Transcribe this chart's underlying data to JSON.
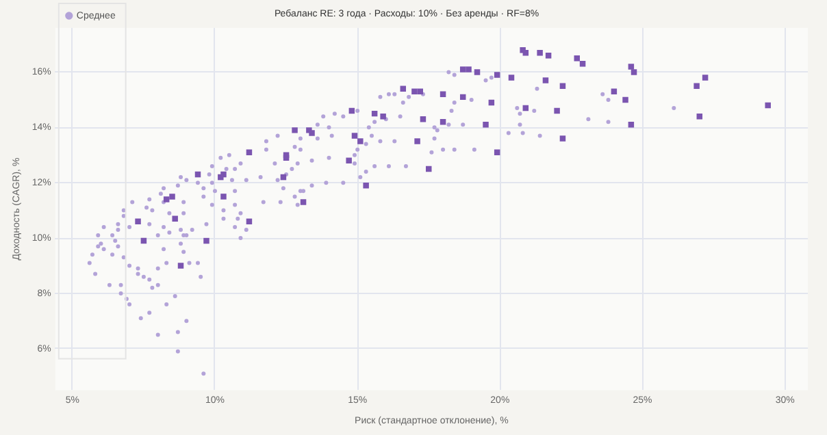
{
  "chart_data": {
    "type": "scatter",
    "title": "Ребаланс RE: 3 года · Расходы: 10% · Без аренды · RF=8%",
    "xlabel": "Риск (стандартное отклонение), %",
    "ylabel": "Доходность (CAGR), %",
    "xlim": [
      4.4,
      30.8
    ],
    "ylim": [
      4.5,
      17.6
    ],
    "xticks": [
      {
        "value": 5,
        "label": "5%"
      },
      {
        "value": 10,
        "label": "10%"
      },
      {
        "value": 15,
        "label": "15%"
      },
      {
        "value": 20,
        "label": "20%"
      },
      {
        "value": 25,
        "label": "25%"
      },
      {
        "value": 30,
        "label": "30%"
      }
    ],
    "yticks": [
      {
        "value": 6,
        "label": "6%"
      },
      {
        "value": 8,
        "label": "8%"
      },
      {
        "value": 10,
        "label": "10%"
      },
      {
        "value": 12,
        "label": "12%"
      },
      {
        "value": 14,
        "label": "14%"
      },
      {
        "value": 16,
        "label": "16%"
      }
    ],
    "grid": true,
    "legend": "top left",
    "series": [
      {
        "name": "Среднее",
        "color": "#b3a3d8",
        "marker": "circle",
        "x": [
          13.6,
          13.6,
          13.0,
          12.2,
          11.8,
          11.8,
          12.8,
          13.0,
          12.1,
          12.7,
          10.5,
          10.9,
          10.2,
          9.9,
          10.4,
          10.7,
          10.6,
          11.1,
          8.8,
          9.0,
          9.8,
          9.4,
          9.6,
          9.9,
          8.2,
          8.7,
          8.1,
          10.0,
          10.7,
          11.6,
          12.2,
          12.4,
          12.8,
          13.4,
          13.0,
          7.1,
          7.7,
          7.6,
          8.2,
          8.9,
          9.6,
          10.7,
          10.9,
          11.7,
          12.3,
          6.8,
          7.8,
          8.4,
          8.9,
          9.9,
          10.3,
          7.0,
          6.6,
          6.8,
          7.7,
          8.2,
          8.8,
          9.2,
          9.7,
          10.8,
          11.1,
          6.1,
          5.9,
          6.4,
          8.0,
          9.0,
          10.9,
          6.6,
          6.0,
          5.9,
          6.5,
          6.4,
          6.1,
          6.6,
          5.7,
          5.6,
          5.8,
          6.8,
          7.0,
          7.3,
          7.3,
          7.5,
          7.7,
          8.0,
          8.4,
          8.2,
          8.8,
          8.9,
          8.9,
          8.3,
          9.1,
          9.4,
          9.5,
          6.3,
          6.7,
          6.7,
          6.9,
          7.0,
          7.8,
          8.0,
          7.4,
          7.7,
          8.3,
          8.6,
          9.0,
          8.0,
          8.7,
          8.7,
          9.6,
          10.3,
          10.7,
          12.9,
          13.1,
          13.9,
          14.5,
          15.1,
          15.3,
          15.6,
          16.1,
          16.7,
          12.9,
          13.4,
          14.0,
          14.0,
          14.1,
          13.8,
          14.2,
          14.5,
          15.0,
          15.4,
          15.6,
          16.0,
          16.5,
          15.8,
          16.1,
          16.3,
          16.6,
          16.8,
          17.3,
          18.2,
          18.4,
          19.0,
          18.4,
          18.3,
          17.7,
          17.8,
          18.2,
          18.7,
          17.7,
          17.6,
          18.0,
          18.4,
          19.1,
          20.3,
          20.8,
          21.4,
          20.7,
          20.7,
          20.6,
          21.2,
          21.3,
          19.5,
          19.7,
          15.8,
          16.3,
          15.3,
          15.0,
          14.9,
          14.9,
          15.5,
          12.5,
          23.6,
          23.8,
          23.1,
          23.8,
          26.1
        ],
        "values": [
          14.1,
          13.6,
          13.6,
          13.7,
          13.5,
          13.2,
          13.3,
          13.2,
          12.7,
          12.5,
          13.0,
          12.7,
          12.9,
          12.6,
          12.5,
          12.5,
          12.1,
          12.1,
          12.2,
          12.1,
          12.3,
          12.0,
          11.8,
          12.0,
          11.8,
          11.9,
          11.6,
          11.7,
          11.7,
          12.2,
          12.1,
          11.8,
          11.5,
          11.9,
          11.7,
          11.3,
          11.4,
          11.1,
          11.3,
          11.3,
          11.5,
          11.2,
          10.9,
          11.3,
          11.3,
          11.0,
          11.0,
          10.9,
          10.9,
          11.2,
          11.0,
          10.4,
          10.5,
          10.8,
          10.5,
          10.4,
          10.3,
          10.3,
          10.5,
          10.7,
          10.3,
          10.4,
          10.1,
          10.1,
          10.1,
          10.1,
          10.0,
          10.3,
          9.8,
          9.7,
          9.9,
          9.4,
          9.6,
          9.7,
          9.4,
          9.1,
          8.7,
          9.3,
          9.0,
          8.9,
          8.7,
          8.6,
          8.5,
          8.9,
          10.2,
          9.6,
          9.8,
          10.1,
          9.5,
          9.1,
          9.1,
          9.1,
          8.6,
          8.3,
          8.3,
          8.0,
          7.8,
          7.6,
          8.2,
          8.3,
          7.1,
          7.3,
          7.6,
          7.9,
          7.0,
          6.5,
          6.6,
          5.9,
          5.1,
          10.7,
          10.4,
          11.2,
          11.7,
          12.0,
          12.0,
          12.2,
          12.4,
          12.6,
          12.6,
          12.6,
          12.7,
          12.8,
          12.9,
          14.0,
          13.7,
          14.4,
          14.5,
          14.4,
          14.6,
          14.0,
          14.2,
          14.3,
          14.4,
          15.1,
          15.2,
          15.2,
          14.9,
          15.1,
          15.2,
          16.0,
          15.9,
          15.0,
          14.9,
          14.6,
          14.0,
          13.9,
          14.1,
          14.1,
          13.6,
          13.1,
          13.2,
          13.2,
          13.2,
          13.8,
          13.8,
          13.7,
          14.1,
          14.5,
          14.7,
          14.6,
          15.4,
          15.7,
          15.8,
          13.5,
          13.5,
          13.4,
          13.2,
          13.0,
          12.7,
          13.7,
          12.3,
          15.2,
          15.0,
          14.3,
          14.2,
          14.7
        ]
      },
      {
        "color": "#7b55b0",
        "marker": "square",
        "x": [
          7.3,
          7.5,
          8.6,
          8.8,
          9.7,
          11.2,
          8.3,
          8.5,
          10.3,
          13.1,
          9.4,
          10.3,
          10.2,
          12.4,
          11.2,
          12.5,
          12.5,
          12.8,
          13.3,
          13.4,
          14.8,
          15.6,
          15.9,
          17.3,
          18.0,
          19.5,
          14.9,
          15.1,
          17.1,
          19.9,
          14.7,
          17.5,
          15.3,
          16.6,
          17.0,
          17.2,
          18.0,
          18.7,
          19.7,
          18.7,
          18.9,
          19.2,
          19.9,
          20.4,
          20.8,
          20.9,
          21.4,
          21.7,
          22.7,
          22.9,
          24.6,
          24.7,
          21.6,
          22.2,
          24.0,
          24.4,
          20.9,
          22.0,
          24.6,
          22.2,
          27.2,
          26.9,
          27.0,
          29.4
        ],
        "values": [
          10.6,
          9.9,
          10.7,
          9.0,
          9.9,
          10.6,
          11.4,
          11.5,
          11.5,
          11.3,
          12.3,
          12.3,
          12.2,
          12.2,
          13.1,
          13.0,
          12.9,
          13.9,
          13.9,
          13.8,
          14.6,
          14.5,
          14.4,
          14.3,
          14.2,
          14.1,
          13.7,
          13.5,
          13.5,
          13.1,
          12.8,
          12.5,
          11.9,
          15.4,
          15.3,
          15.3,
          15.2,
          15.1,
          14.9,
          16.1,
          16.1,
          16.0,
          15.9,
          15.8,
          16.8,
          16.7,
          16.7,
          16.6,
          16.5,
          16.3,
          16.2,
          16.0,
          15.7,
          15.5,
          15.3,
          15.0,
          14.7,
          14.6,
          14.1,
          13.6,
          15.8,
          15.5,
          14.4,
          14.8
        ]
      }
    ]
  }
}
